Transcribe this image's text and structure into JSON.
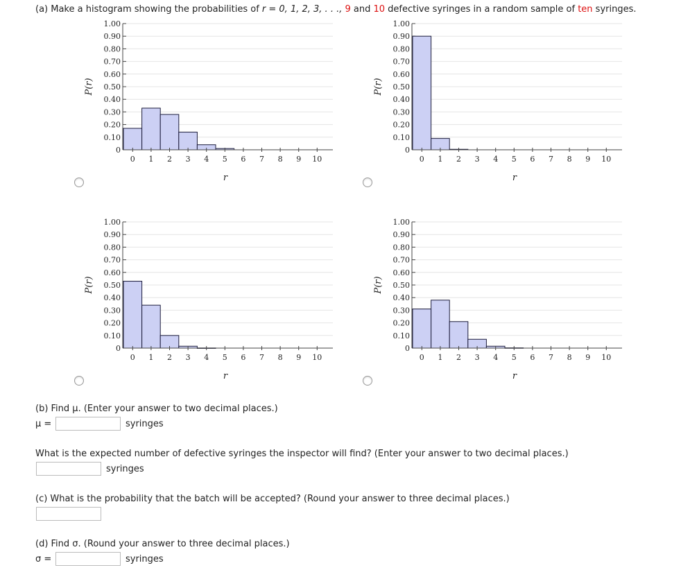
{
  "question_a": {
    "prefix": "(a) Make a histogram showing the probabilities of",
    "r_list": "r = 0, 1, 2, 3, . . ., ",
    "nine": "9",
    "and": " and ",
    "ten": "10",
    "middle": " defective syringes in a random sample of ",
    "ten_word": "ten",
    "suffix": " syringes."
  },
  "chart_common": {
    "ylabel": "P(r)",
    "xlabel": "r",
    "yticks": [
      "0",
      "0.10",
      "0.20",
      "0.30",
      "0.40",
      "0.50",
      "0.60",
      "0.70",
      "0.80",
      "0.90",
      "1.00"
    ],
    "xticks": [
      "0",
      "1",
      "2",
      "3",
      "4",
      "5",
      "6",
      "7",
      "8",
      "9",
      "10"
    ]
  },
  "chart_data": [
    {
      "type": "bar",
      "title": "",
      "xlabel": "r",
      "ylabel": "P(r)",
      "ylim": [
        0,
        1
      ],
      "categories": [
        "0",
        "1",
        "2",
        "3",
        "4",
        "5",
        "6",
        "7",
        "8",
        "9",
        "10"
      ],
      "values": [
        0.17,
        0.33,
        0.28,
        0.14,
        0.04,
        0.01,
        0,
        0,
        0,
        0,
        0
      ],
      "bar_color": "#ccd0f4"
    },
    {
      "type": "bar",
      "title": "",
      "xlabel": "r",
      "ylabel": "P(r)",
      "ylim": [
        0,
        1
      ],
      "categories": [
        "0",
        "1",
        "2",
        "3",
        "4",
        "5",
        "6",
        "7",
        "8",
        "9",
        "10"
      ],
      "values": [
        0.9,
        0.09,
        0.004,
        0,
        0,
        0,
        0,
        0,
        0,
        0,
        0
      ],
      "bar_color": "#ccd0f4"
    },
    {
      "type": "bar",
      "title": "",
      "xlabel": "r",
      "ylabel": "P(r)",
      "ylim": [
        0,
        1
      ],
      "categories": [
        "0",
        "1",
        "2",
        "3",
        "4",
        "5",
        "6",
        "7",
        "8",
        "9",
        "10"
      ],
      "values": [
        0.53,
        0.34,
        0.1,
        0.015,
        0.001,
        0,
        0,
        0,
        0,
        0,
        0
      ],
      "bar_color": "#ccd0f4"
    },
    {
      "type": "bar",
      "title": "",
      "xlabel": "r",
      "ylabel": "P(r)",
      "ylim": [
        0,
        1
      ],
      "categories": [
        "0",
        "1",
        "2",
        "3",
        "4",
        "5",
        "6",
        "7",
        "8",
        "9",
        "10"
      ],
      "values": [
        0.31,
        0.38,
        0.21,
        0.07,
        0.015,
        0.002,
        0,
        0,
        0,
        0,
        0
      ],
      "bar_color": "#ccd0f4"
    }
  ],
  "question_b": {
    "text": "(b) Find μ. (Enter your answer to two decimal places.)",
    "mu_label": "μ =",
    "unit": "syringes",
    "mu_value": ""
  },
  "question_expected": {
    "text": "What is the expected number of defective syringes the inspector will find? (Enter your answer to two decimal places.)",
    "unit": "syringes",
    "value": ""
  },
  "question_c": {
    "text": "(c) What is the probability that the batch will be accepted? (Round your answer to three decimal places.)",
    "value": ""
  },
  "question_d": {
    "text": "(d) Find σ. (Round your answer to three decimal places.)",
    "sigma_label": "σ =",
    "unit": "syringes",
    "sigma_value": ""
  }
}
